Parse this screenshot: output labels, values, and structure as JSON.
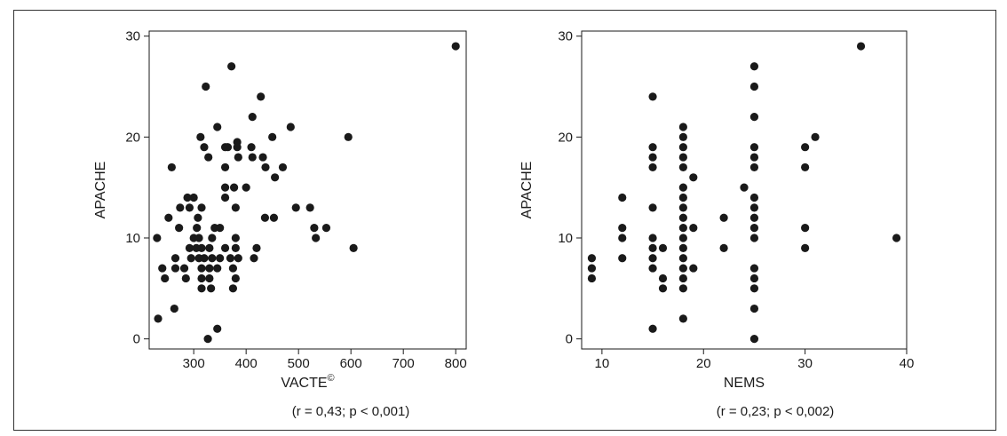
{
  "chart_data": [
    {
      "type": "scatter",
      "title": "",
      "xlabel": "VACTE",
      "xlabel_sup": "©",
      "ylabel": "APACHE",
      "annotation": "(r = 0,43; p < 0,001)",
      "xlim": [
        215,
        820
      ],
      "ylim": [
        -1,
        30.5
      ],
      "xticks": [
        300,
        400,
        500,
        600,
        700,
        800
      ],
      "yticks": [
        0,
        10,
        20,
        30
      ],
      "grid": false,
      "colors": {
        "marker": "#1a1a1a"
      },
      "points": [
        [
          800,
          29
        ],
        [
          372,
          27
        ],
        [
          323,
          25
        ],
        [
          428,
          24
        ],
        [
          412,
          22
        ],
        [
          485,
          21
        ],
        [
          345,
          21
        ],
        [
          595,
          20
        ],
        [
          313,
          20
        ],
        [
          383,
          19.5
        ],
        [
          360,
          19
        ],
        [
          365,
          19
        ],
        [
          320,
          19
        ],
        [
          383,
          19
        ],
        [
          410,
          19
        ],
        [
          385,
          18
        ],
        [
          412,
          18
        ],
        [
          328,
          18
        ],
        [
          432,
          18
        ],
        [
          450,
          20
        ],
        [
          437,
          17
        ],
        [
          470,
          17
        ],
        [
          360,
          17
        ],
        [
          258,
          17
        ],
        [
          455,
          16
        ],
        [
          400,
          15
        ],
        [
          377,
          15
        ],
        [
          360,
          15
        ],
        [
          300,
          14
        ],
        [
          288,
          14
        ],
        [
          360,
          14
        ],
        [
          380,
          13
        ],
        [
          274,
          13
        ],
        [
          292,
          13
        ],
        [
          315,
          13
        ],
        [
          495,
          13
        ],
        [
          522,
          13
        ],
        [
          308,
          12
        ],
        [
          252,
          12
        ],
        [
          436,
          12
        ],
        [
          453,
          12
        ],
        [
          272,
          11
        ],
        [
          306,
          11
        ],
        [
          340,
          11
        ],
        [
          350,
          11
        ],
        [
          530,
          11
        ],
        [
          553,
          11
        ],
        [
          230,
          10
        ],
        [
          300,
          10
        ],
        [
          310,
          10
        ],
        [
          335,
          10
        ],
        [
          380,
          10
        ],
        [
          533,
          10
        ],
        [
          292,
          9
        ],
        [
          305,
          9
        ],
        [
          315,
          9
        ],
        [
          330,
          9
        ],
        [
          360,
          9
        ],
        [
          380,
          9
        ],
        [
          420,
          9
        ],
        [
          605,
          9
        ],
        [
          265,
          8
        ],
        [
          295,
          8
        ],
        [
          310,
          8
        ],
        [
          320,
          8
        ],
        [
          335,
          8
        ],
        [
          350,
          8
        ],
        [
          370,
          8
        ],
        [
          385,
          8
        ],
        [
          415,
          8
        ],
        [
          240,
          7
        ],
        [
          265,
          7
        ],
        [
          282,
          7
        ],
        [
          315,
          7
        ],
        [
          330,
          7
        ],
        [
          345,
          7
        ],
        [
          375,
          7
        ],
        [
          285,
          6
        ],
        [
          245,
          6
        ],
        [
          315,
          6
        ],
        [
          330,
          6
        ],
        [
          380,
          6
        ],
        [
          315,
          5
        ],
        [
          333,
          5
        ],
        [
          375,
          5
        ],
        [
          263,
          3
        ],
        [
          232,
          2
        ],
        [
          345,
          1
        ],
        [
          327,
          0
        ]
      ]
    },
    {
      "type": "scatter",
      "title": "",
      "xlabel": "NEMS",
      "ylabel": "APACHE",
      "annotation": "(r = 0,23; p < 0,002)",
      "xlim": [
        8,
        40
      ],
      "ylim": [
        -1,
        30.5
      ],
      "xticks": [
        10,
        20,
        30,
        40
      ],
      "yticks": [
        0,
        10,
        20,
        30
      ],
      "grid": false,
      "colors": {
        "marker": "#1a1a1a"
      },
      "points": [
        [
          9,
          8
        ],
        [
          9,
          7
        ],
        [
          9,
          6
        ],
        [
          12,
          14
        ],
        [
          12,
          11
        ],
        [
          12,
          10
        ],
        [
          12,
          8
        ],
        [
          15,
          24
        ],
        [
          15,
          19
        ],
        [
          15,
          18
        ],
        [
          15,
          17
        ],
        [
          15,
          13
        ],
        [
          15,
          10
        ],
        [
          15,
          9
        ],
        [
          15,
          8
        ],
        [
          15,
          7
        ],
        [
          15,
          1
        ],
        [
          16,
          9
        ],
        [
          16,
          6
        ],
        [
          16,
          5
        ],
        [
          18,
          21
        ],
        [
          18,
          20
        ],
        [
          18,
          19
        ],
        [
          18,
          18
        ],
        [
          18,
          17
        ],
        [
          18,
          15
        ],
        [
          18,
          14
        ],
        [
          18,
          13
        ],
        [
          18,
          12
        ],
        [
          18,
          11
        ],
        [
          18,
          10
        ],
        [
          18,
          9
        ],
        [
          18,
          8
        ],
        [
          18,
          7
        ],
        [
          18,
          6
        ],
        [
          18,
          5
        ],
        [
          18,
          2
        ],
        [
          19,
          16
        ],
        [
          19,
          11
        ],
        [
          19,
          7
        ],
        [
          22,
          12
        ],
        [
          22,
          9
        ],
        [
          24,
          15
        ],
        [
          25,
          27
        ],
        [
          25,
          25
        ],
        [
          25,
          22
        ],
        [
          25,
          19
        ],
        [
          25,
          18
        ],
        [
          25,
          17
        ],
        [
          25,
          14
        ],
        [
          25,
          13
        ],
        [
          25,
          12
        ],
        [
          25,
          11
        ],
        [
          25,
          10
        ],
        [
          25,
          7
        ],
        [
          25,
          6
        ],
        [
          25,
          5
        ],
        [
          25,
          3
        ],
        [
          25,
          0
        ],
        [
          30,
          19
        ],
        [
          30,
          17
        ],
        [
          30,
          11
        ],
        [
          30,
          9
        ],
        [
          31,
          20
        ],
        [
          35.5,
          29
        ],
        [
          39,
          10
        ]
      ]
    }
  ]
}
